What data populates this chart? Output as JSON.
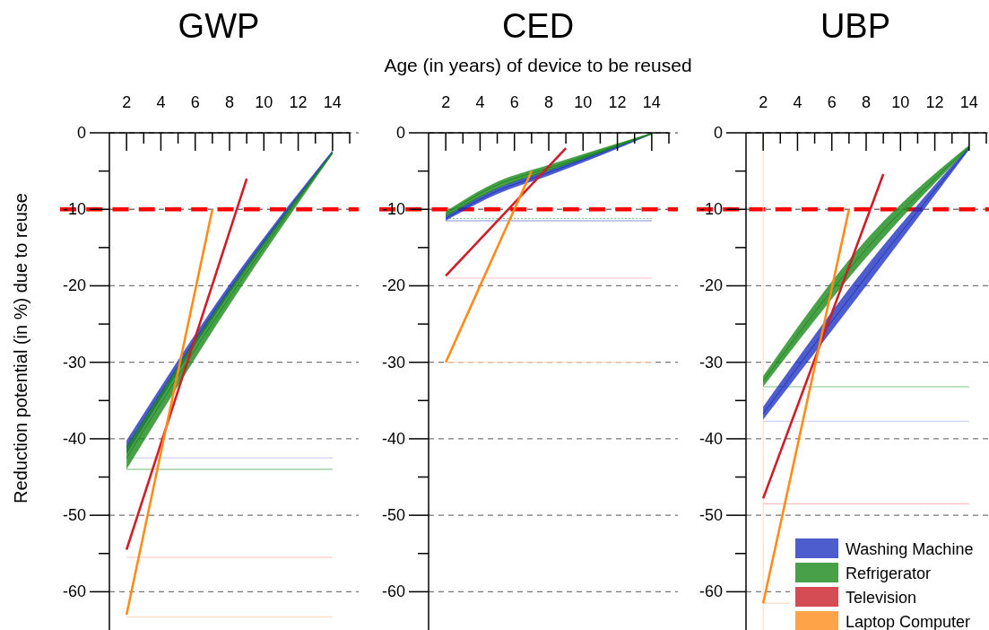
{
  "chart_data": [
    {
      "type": "line",
      "title": "GWP",
      "ylabel": "Reduction potential (in %) due to reuse",
      "xlim": [
        1,
        15
      ],
      "ylim": [
        -65,
        0
      ],
      "xticks": [
        2,
        {
          "value": 3,
          "label": null
        },
        4,
        {
          "value": 5,
          "label": null
        },
        6,
        {
          "value": 7,
          "label": null
        },
        8,
        {
          "value": 9,
          "label": null
        },
        10,
        {
          "value": 11,
          "label": null
        },
        12,
        {
          "value": 13,
          "label": null
        },
        14,
        {
          "value": 15,
          "label": null
        }
      ],
      "yticks": [
        -60,
        {
          "value": -55,
          "label": null
        },
        -50,
        {
          "value": -45,
          "label": null
        },
        -40,
        {
          "value": -35,
          "label": null
        },
        -30,
        {
          "value": -25,
          "label": null
        },
        -20,
        {
          "value": -15,
          "label": null
        },
        -10,
        {
          "value": -5,
          "label": null
        },
        0
      ],
      "grid": "y",
      "legend": false,
      "series": [
        {
          "color": "#2035c0",
          "x": [
            2,
            8,
            14
          ],
          "values": [
            -41.1,
            -20.4,
            -2.5
          ],
          "lower": [
            -42,
            -21,
            -2.8
          ],
          "upper": [
            -40.2,
            -19.8,
            -2.3
          ]
        },
        {
          "color": "#1a8a1a",
          "x": [
            2,
            8,
            14
          ],
          "values": [
            -42.5,
            -21.5,
            -2.6
          ],
          "lower": [
            -44,
            -22.5,
            -2.8
          ],
          "upper": [
            -41,
            -20.5,
            -2.5
          ]
        },
        {
          "color": "#cc1f2a",
          "x": [
            2,
            9
          ],
          "values": [
            -54.5,
            -6
          ]
        },
        {
          "color": "#ff8c1a",
          "x": [
            2,
            7
          ],
          "values": [
            -63,
            -10
          ]
        }
      ],
      "ref_lines": [
        {
          "axis": "y",
          "value": -10,
          "color": "#ff0000",
          "line_style": "dashed"
        },
        {
          "axis": "y",
          "value": -42.5,
          "color": "#c0c8f0"
        },
        {
          "axis": "y",
          "value": -44,
          "color": "#70b870"
        },
        {
          "axis": "y",
          "value": -55.5,
          "color": "#f8c0c0"
        },
        {
          "axis": "y",
          "value": -63.3,
          "color": "#fcd8c0"
        }
      ]
    },
    {
      "type": "line",
      "title": "CED",
      "xlabel": "Age (in years) of device to be reused",
      "xlim": [
        1,
        15
      ],
      "ylim": [
        -65,
        0
      ],
      "xticks": [
        2,
        {
          "value": 3,
          "label": null
        },
        4,
        {
          "value": 5,
          "label": null
        },
        6,
        {
          "value": 7,
          "label": null
        },
        8,
        {
          "value": 9,
          "label": null
        },
        10,
        {
          "value": 11,
          "label": null
        },
        12,
        {
          "value": 13,
          "label": null
        },
        14,
        {
          "value": 15,
          "label": null
        }
      ],
      "yticks": [
        -60,
        {
          "value": -55,
          "label": null
        },
        -50,
        {
          "value": -45,
          "label": null
        },
        -40,
        {
          "value": -35,
          "label": null
        },
        -30,
        {
          "value": -25,
          "label": null
        },
        -20,
        {
          "value": -15,
          "label": null
        },
        -10,
        {
          "value": -5,
          "label": null
        },
        0
      ],
      "grid": "y",
      "legend": false,
      "series": [
        {
          "color": "#2035c0",
          "x": [
            2,
            5,
            8,
            14
          ],
          "values": [
            -11.2,
            -7.6,
            -5.2,
            -0.1
          ],
          "lower": [
            -11.5,
            -8,
            -5.6,
            -0.2
          ],
          "upper": [
            -10.8,
            -7.2,
            -4.8,
            0
          ]
        },
        {
          "color": "#1a8a1a",
          "x": [
            2,
            5,
            8,
            14
          ],
          "values": [
            -10.6,
            -6.8,
            -4.6,
            -0.1
          ],
          "lower": [
            -11,
            -7.3,
            -5,
            -0.2
          ],
          "upper": [
            -10.3,
            -6.4,
            -4.2,
            0
          ]
        },
        {
          "color": "#cc1f2a",
          "x": [
            2,
            9
          ],
          "values": [
            -18.7,
            -2
          ]
        },
        {
          "color": "#ff8c1a",
          "x": [
            2,
            7
          ],
          "values": [
            -30,
            -5
          ]
        }
      ],
      "ref_lines": [
        {
          "axis": "y",
          "value": -10,
          "color": "#ff0000",
          "line_style": "dashed"
        },
        {
          "axis": "y",
          "value": -11.2,
          "color": "#80c080",
          "line_style": "dotted"
        },
        {
          "axis": "y",
          "value": -11.5,
          "color": "#8090e0"
        },
        {
          "axis": "y",
          "value": -19,
          "color": "#f8c0c0"
        },
        {
          "axis": "y",
          "value": -30,
          "color": "#fcd0b0"
        }
      ]
    },
    {
      "type": "line",
      "title": "UBP",
      "xlim": [
        1,
        15
      ],
      "ylim": [
        -65,
        0
      ],
      "xticks": [
        2,
        {
          "value": 3,
          "label": null
        },
        4,
        {
          "value": 5,
          "label": null
        },
        6,
        {
          "value": 7,
          "label": null
        },
        8,
        {
          "value": 9,
          "label": null
        },
        10,
        {
          "value": 11,
          "label": null
        },
        12,
        {
          "value": 13,
          "label": null
        },
        14,
        {
          "value": 15,
          "label": null
        }
      ],
      "yticks": [
        -60,
        {
          "value": -55,
          "label": null
        },
        -50,
        {
          "value": -45,
          "label": null
        },
        -40,
        {
          "value": -35,
          "label": null
        },
        -30,
        {
          "value": -25,
          "label": null
        },
        -20,
        {
          "value": -15,
          "label": null
        },
        -10,
        {
          "value": -5,
          "label": null
        },
        0
      ],
      "grid": "y",
      "legend": "bottom right",
      "series": [
        {
          "name": "Washing Machine",
          "color": "#2035c0",
          "x": [
            2,
            8,
            14
          ],
          "values": [
            -36.7,
            -18.8,
            -2
          ],
          "lower": [
            -37.5,
            -20,
            -2.2
          ],
          "upper": [
            -35.8,
            -17.5,
            -1.8
          ]
        },
        {
          "name": "Refrigerator",
          "color": "#1a8a1a",
          "x": [
            2,
            8,
            14
          ],
          "values": [
            -32.5,
            -15.2,
            -1.8
          ],
          "lower": [
            -33.2,
            -16.3,
            -2
          ],
          "upper": [
            -31.8,
            -14,
            -1.6
          ]
        },
        {
          "name": "Television",
          "color": "#cc1f2a",
          "x": [
            2,
            9
          ],
          "values": [
            -47.8,
            -5.4
          ]
        },
        {
          "name": "Laptop Computer",
          "color": "#ff8c1a",
          "x": [
            2,
            7
          ],
          "values": [
            -61.5,
            -10
          ]
        }
      ],
      "ref_lines": [
        {
          "axis": "y",
          "value": -10,
          "color": "#ff0000",
          "line_style": "dashed"
        },
        {
          "axis": "y",
          "value": -33.2,
          "color": "#80c080"
        },
        {
          "axis": "y",
          "value": -37.7,
          "color": "#c0c8f0"
        },
        {
          "axis": "y",
          "value": -48.5,
          "color": "#f8b0b0"
        },
        {
          "axis": "y",
          "value": -61.5,
          "color": "#fcd0b0"
        },
        {
          "axis": "x",
          "value": 2,
          "color": "#fcd8c0"
        }
      ]
    }
  ]
}
